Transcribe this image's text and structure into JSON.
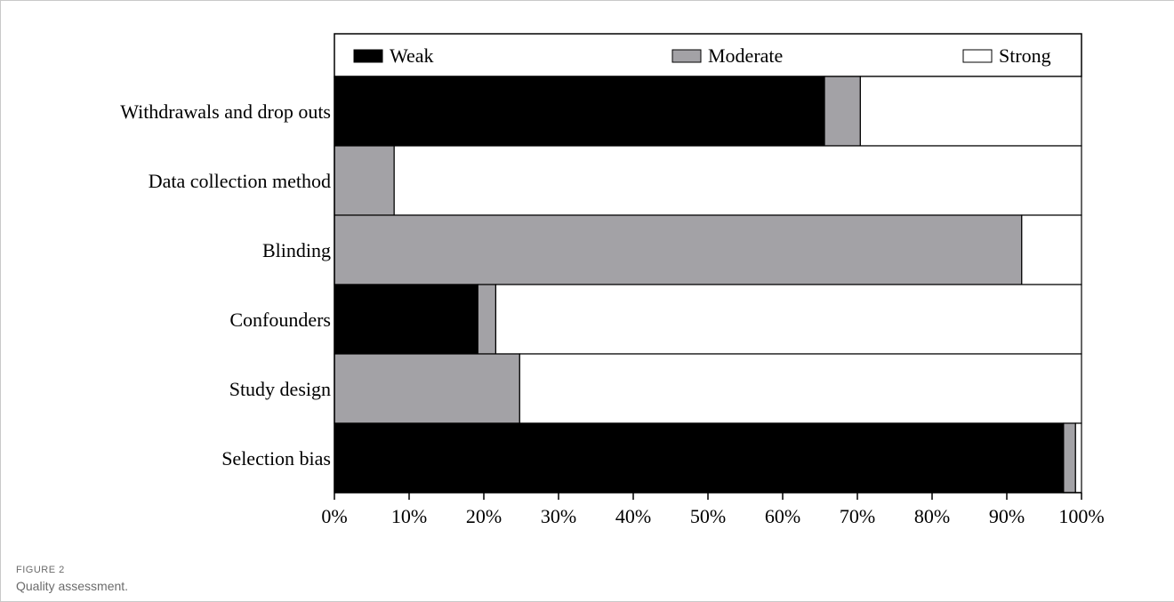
{
  "caption": {
    "label": "FIGURE 2",
    "text": "Quality assessment."
  },
  "chart_data": {
    "type": "bar",
    "orientation": "horizontal",
    "stacked": true,
    "categories": [
      "Withdrawals and drop outs",
      "Data collection method",
      "Blinding",
      "Confounders",
      "Study design",
      "Selection bias"
    ],
    "series": [
      {
        "name": "Weak",
        "color": "#000000",
        "values": [
          65.6,
          0,
          0,
          19.2,
          0,
          97.6
        ]
      },
      {
        "name": "Moderate",
        "color": "#a3a2a6",
        "values": [
          4.8,
          8.0,
          92.0,
          2.4,
          24.8,
          1.6
        ]
      },
      {
        "name": "Strong",
        "color": "#ffffff",
        "values": [
          29.6,
          92.0,
          8.0,
          78.4,
          75.2,
          0.8
        ]
      }
    ],
    "xlim": [
      0,
      100
    ],
    "x_ticks": [
      "0%",
      "10%",
      "20%",
      "30%",
      "40%",
      "50%",
      "60%",
      "70%",
      "80%",
      "90%",
      "100%"
    ],
    "legend_position": "top",
    "grid": false
  }
}
